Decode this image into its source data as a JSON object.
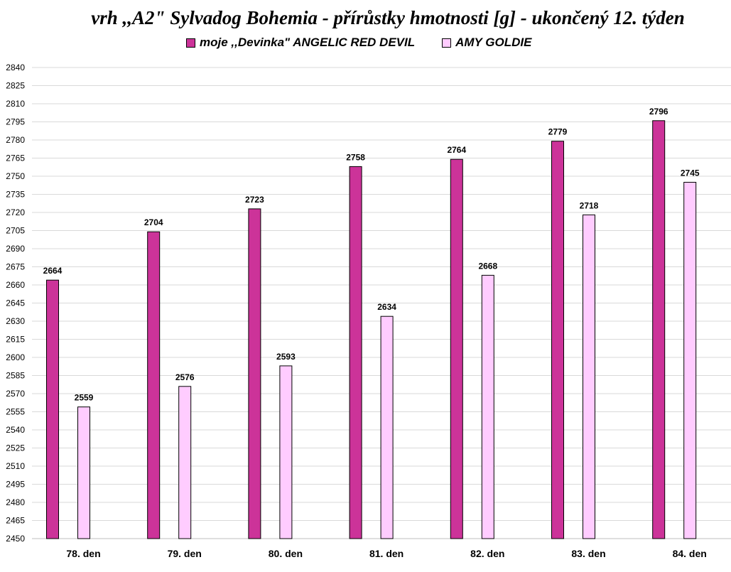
{
  "chart_data": {
    "type": "bar",
    "title": "vrh ,,A2\" Sylvadog Bohemia - přírůstky hmotnosti [g] - ukončený 12. týden",
    "categories": [
      "78. den",
      "79. den",
      "80. den",
      "81. den",
      "82. den",
      "83. den",
      "84. den"
    ],
    "series": [
      {
        "name": "moje ,,Devinka\" ANGELIC RED DEVIL",
        "color": "#cc3399",
        "values": [
          2664,
          2704,
          2723,
          2758,
          2764,
          2779,
          2796
        ]
      },
      {
        "name": "AMY GOLDIE",
        "color": "#ffccff",
        "values": [
          2559,
          2576,
          2593,
          2634,
          2668,
          2718,
          2745
        ]
      }
    ],
    "ylim": [
      2450,
      2840
    ],
    "ytick_step": 15,
    "grid": true,
    "legend_position": "top-center",
    "xlabel": "",
    "ylabel": ""
  }
}
